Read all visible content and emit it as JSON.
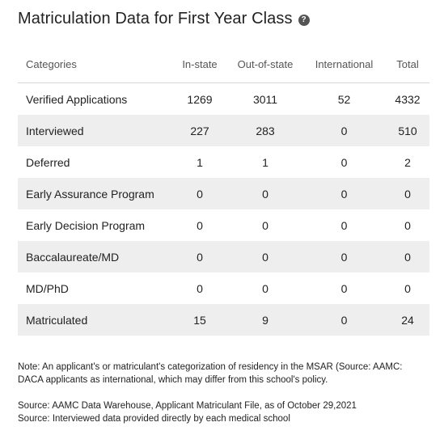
{
  "title": "Matriculation Data for First Year Class",
  "help_icon": "help-circle-icon",
  "table": {
    "headers": [
      "Categories",
      "In-state",
      "Out-of-state",
      "International",
      "Total"
    ],
    "rows": [
      {
        "category": "Verified Applications",
        "in_state": "1269",
        "out_of_state": "3011",
        "international": "52",
        "total": "4332"
      },
      {
        "category": "Interviewed",
        "in_state": "227",
        "out_of_state": "283",
        "international": "0",
        "total": "510"
      },
      {
        "category": "Deferred",
        "in_state": "1",
        "out_of_state": "1",
        "international": "0",
        "total": "2"
      },
      {
        "category": "Early Assurance Program",
        "in_state": "0",
        "out_of_state": "0",
        "international": "0",
        "total": "0"
      },
      {
        "category": "Early Decision Program",
        "in_state": "0",
        "out_of_state": "0",
        "international": "0",
        "total": "0"
      },
      {
        "category": "Baccalaureate/MD",
        "in_state": "0",
        "out_of_state": "0",
        "international": "0",
        "total": "0"
      },
      {
        "category": "MD/PhD",
        "in_state": "0",
        "out_of_state": "0",
        "international": "0",
        "total": "0"
      },
      {
        "category": "Matriculated",
        "in_state": "15",
        "out_of_state": "9",
        "international": "0",
        "total": "24"
      }
    ]
  },
  "note": {
    "line1": "Note:  An applicant's or matriculant's categorization of residency in the MSAR (Source: AAMC:",
    "line2": "DACA applicants as international, which may differ from this school's policy."
  },
  "sources": {
    "line1": "Source: AAMC Data Warehouse, Applicant Matriculant File, as of October 29,2021",
    "line2": "Source: Interviewed data provided directly by each medical school"
  }
}
